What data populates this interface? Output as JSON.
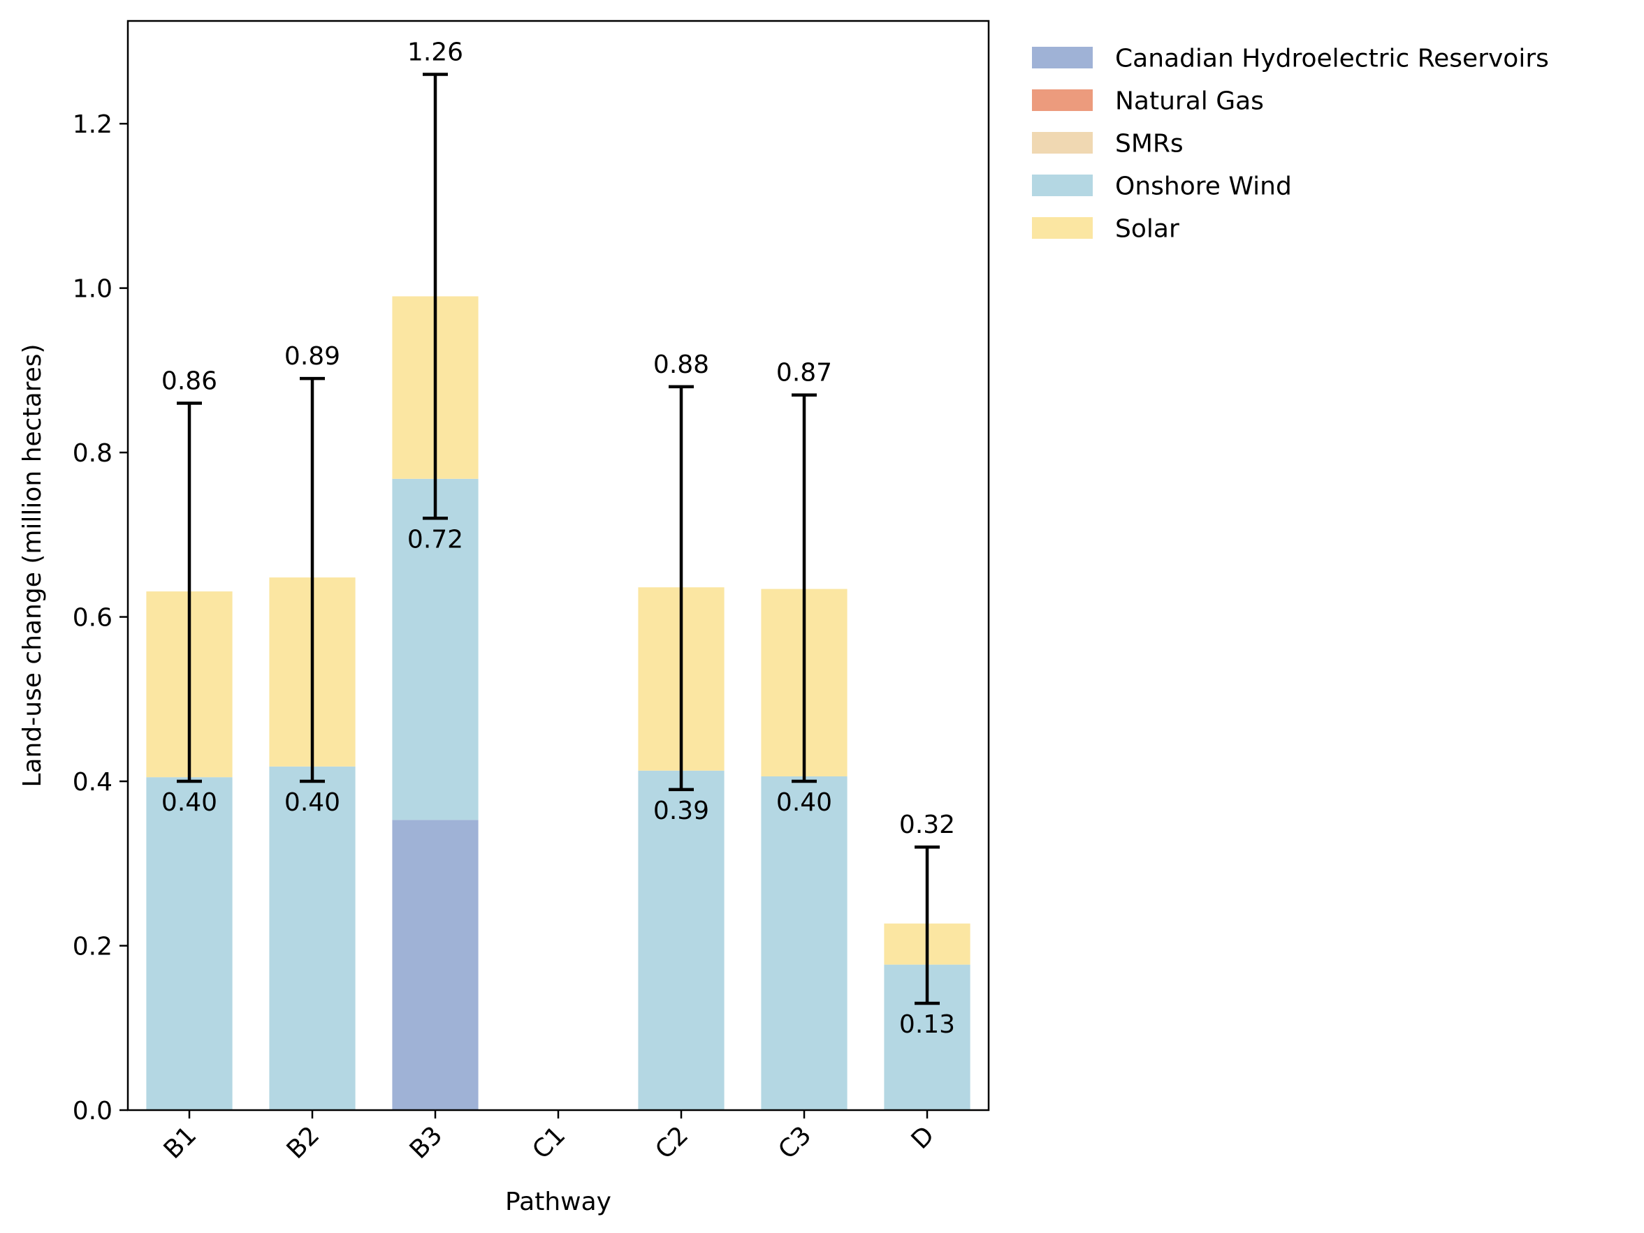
{
  "chart_data": {
    "type": "bar",
    "stacked": true,
    "title": "",
    "xlabel": "Pathway",
    "ylabel": "Land-use change (million hectares)",
    "ylim": [
      0,
      1.325
    ],
    "yticks": [
      0.0,
      0.2,
      0.4,
      0.6,
      0.8,
      1.0,
      1.2
    ],
    "categories": [
      "B1",
      "B2",
      "B3",
      "C1",
      "C2",
      "C3",
      "D"
    ],
    "series": [
      {
        "name": "Canadian Hydroelectric Reservoirs",
        "color": "#9fb2d6",
        "values": [
          0,
          0,
          0.353,
          0,
          0,
          0,
          0
        ]
      },
      {
        "name": "Natural Gas",
        "color": "#ec9b7d",
        "values": [
          0,
          0,
          0,
          0,
          0,
          0,
          0
        ]
      },
      {
        "name": "SMRs",
        "color": "#f0d8b2",
        "values": [
          0,
          0,
          0,
          0,
          0,
          0,
          0
        ]
      },
      {
        "name": "Onshore Wind",
        "color": "#b4d7e3",
        "values": [
          0.405,
          0.418,
          0.415,
          0,
          0.413,
          0.406,
          0.177
        ]
      },
      {
        "name": "Solar",
        "color": "#fbe6a2",
        "values": [
          0.226,
          0.23,
          0.222,
          0,
          0.223,
          0.228,
          0.05
        ]
      }
    ],
    "error_bars": [
      {
        "category": "B1",
        "low": 0.4,
        "high": 0.86,
        "low_label": "0.40",
        "high_label": "0.86"
      },
      {
        "category": "B2",
        "low": 0.4,
        "high": 0.89,
        "low_label": "0.40",
        "high_label": "0.89"
      },
      {
        "category": "B3",
        "low": 0.72,
        "high": 1.26,
        "low_label": "0.72",
        "high_label": "1.26"
      },
      {
        "category": "C2",
        "low": 0.39,
        "high": 0.88,
        "low_label": "0.39",
        "high_label": "0.88"
      },
      {
        "category": "C3",
        "low": 0.4,
        "high": 0.87,
        "low_label": "0.40",
        "high_label": "0.87"
      },
      {
        "category": "D",
        "low": 0.13,
        "high": 0.32,
        "low_label": "0.13",
        "high_label": "0.32"
      }
    ],
    "grid": false,
    "legend_position": "outside-top-right"
  }
}
